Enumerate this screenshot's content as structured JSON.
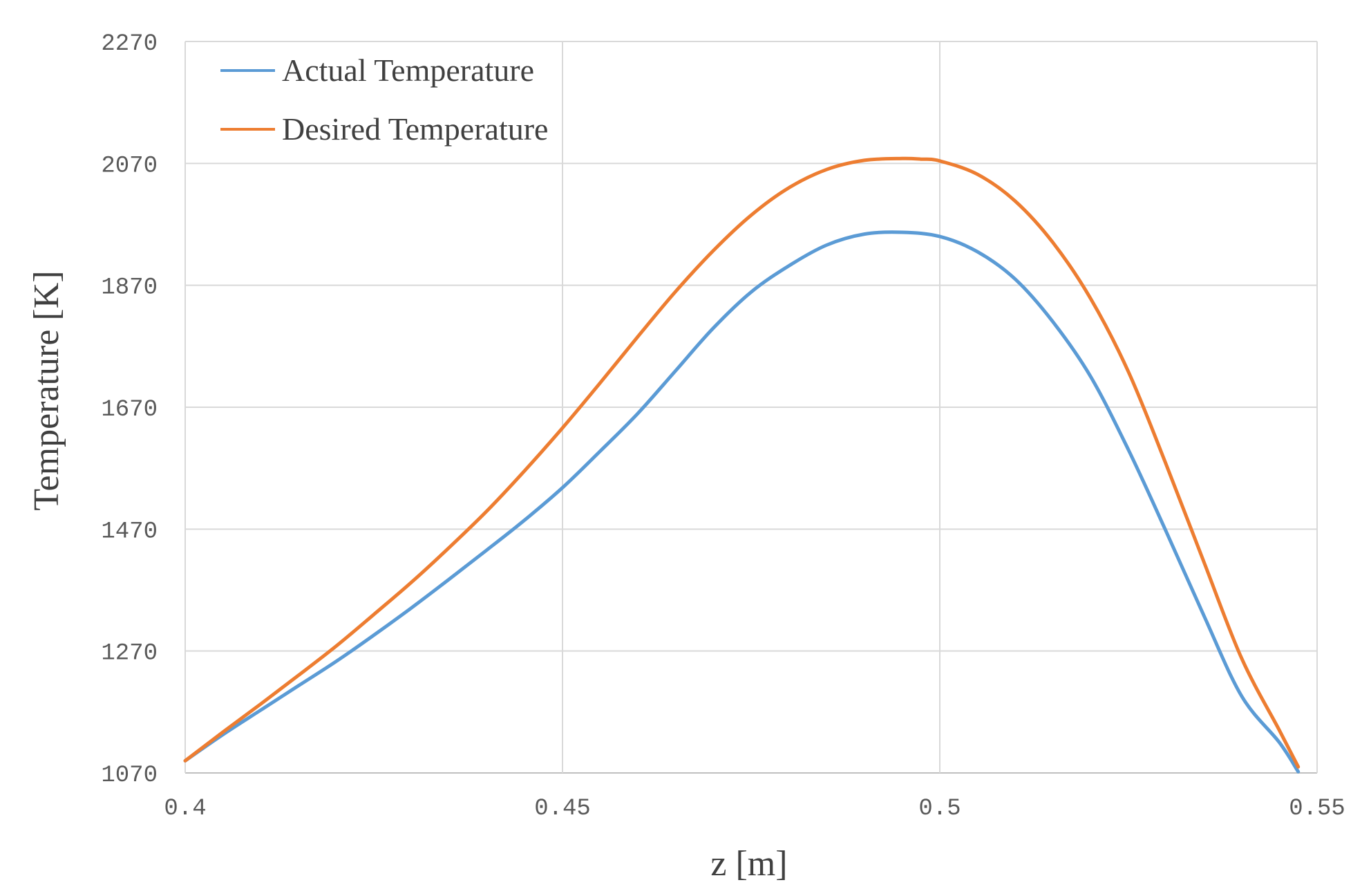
{
  "chart_data": {
    "type": "line",
    "title": "",
    "xlabel": "z [m]",
    "ylabel": "Temperature [K]",
    "xlim": [
      0.4,
      0.55
    ],
    "ylim": [
      1070,
      2270
    ],
    "x_ticks": [
      0.4,
      0.45,
      0.5,
      0.55
    ],
    "x_tick_labels": [
      "0.4",
      "0.45",
      "0.5",
      "0.55"
    ],
    "y_ticks": [
      1070,
      1270,
      1470,
      1670,
      1870,
      2070,
      2270
    ],
    "y_tick_labels": [
      "1070",
      "1270",
      "1470",
      "1670",
      "1870",
      "2070",
      "2270"
    ],
    "grid": true,
    "legend_position": "top-left",
    "series": [
      {
        "name": "Actual Temperature",
        "color": "#5B9BD5",
        "x": [
          0.4,
          0.405,
          0.41,
          0.415,
          0.42,
          0.425,
          0.43,
          0.435,
          0.44,
          0.445,
          0.45,
          0.455,
          0.46,
          0.465,
          0.47,
          0.475,
          0.48,
          0.485,
          0.49,
          0.495,
          0.5,
          0.505,
          0.51,
          0.515,
          0.52,
          0.525,
          0.53,
          0.535,
          0.54,
          0.545,
          0.5475
        ],
        "y": [
          1090,
          1133,
          1173,
          1213,
          1253,
          1296,
          1341,
          1388,
          1436,
          1485,
          1538,
          1598,
          1660,
          1730,
          1800,
          1859,
          1902,
          1936,
          1954,
          1957,
          1950,
          1925,
          1880,
          1810,
          1720,
          1600,
          1466,
          1328,
          1196,
          1120,
          1072
        ]
      },
      {
        "name": "Desired Temperature",
        "color": "#ED7D31",
        "x": [
          0.4,
          0.405,
          0.41,
          0.415,
          0.42,
          0.425,
          0.43,
          0.435,
          0.44,
          0.445,
          0.45,
          0.455,
          0.46,
          0.465,
          0.47,
          0.475,
          0.48,
          0.485,
          0.49,
          0.495,
          0.4975,
          0.5,
          0.505,
          0.51,
          0.515,
          0.52,
          0.525,
          0.53,
          0.535,
          0.54,
          0.545,
          0.5475
        ],
        "y": [
          1090,
          1137,
          1183,
          1230,
          1278,
          1330,
          1383,
          1440,
          1500,
          1566,
          1636,
          1710,
          1786,
          1860,
          1927,
          1985,
          2030,
          2060,
          2075,
          2078,
          2077,
          2074,
          2052,
          2008,
          1940,
          1848,
          1728,
          1576,
          1416,
          1258,
          1140,
          1080
        ]
      }
    ]
  }
}
